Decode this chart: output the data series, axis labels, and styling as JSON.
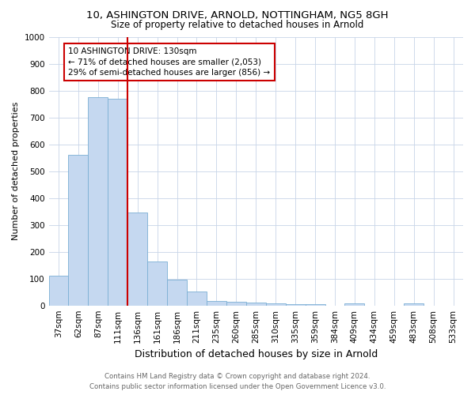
{
  "title_line1": "10, ASHINGTON DRIVE, ARNOLD, NOTTINGHAM, NG5 8GH",
  "title_line2": "Size of property relative to detached houses in Arnold",
  "xlabel": "Distribution of detached houses by size in Arnold",
  "ylabel": "Number of detached properties",
  "categories": [
    "37sqm",
    "62sqm",
    "87sqm",
    "111sqm",
    "136sqm",
    "161sqm",
    "186sqm",
    "211sqm",
    "235sqm",
    "260sqm",
    "285sqm",
    "310sqm",
    "335sqm",
    "359sqm",
    "384sqm",
    "409sqm",
    "434sqm",
    "459sqm",
    "483sqm",
    "508sqm",
    "533sqm"
  ],
  "values": [
    110,
    560,
    775,
    770,
    345,
    163,
    97,
    53,
    18,
    13,
    10,
    8,
    6,
    5,
    0,
    8,
    0,
    0,
    9,
    0,
    0
  ],
  "bar_color": "#c5d8f0",
  "bar_edge_color": "#7bafd4",
  "vline_color": "#cc0000",
  "annotation_text": "10 ASHINGTON DRIVE: 130sqm\n← 71% of detached houses are smaller (2,053)\n29% of semi-detached houses are larger (856) →",
  "annotation_box_color": "#ffffff",
  "annotation_box_edge": "#cc0000",
  "footer_line1": "Contains HM Land Registry data © Crown copyright and database right 2024.",
  "footer_line2": "Contains public sector information licensed under the Open Government Licence v3.0.",
  "ylim": [
    0,
    1000
  ],
  "yticks": [
    0,
    100,
    200,
    300,
    400,
    500,
    600,
    700,
    800,
    900,
    1000
  ],
  "background_color": "#ffffff",
  "grid_color": "#c8d4e8",
  "title1_fontsize": 9.5,
  "title2_fontsize": 8.5,
  "xlabel_fontsize": 9,
  "ylabel_fontsize": 8,
  "tick_fontsize": 7.5,
  "footer_fontsize": 6.2,
  "footer_color": "#666666"
}
